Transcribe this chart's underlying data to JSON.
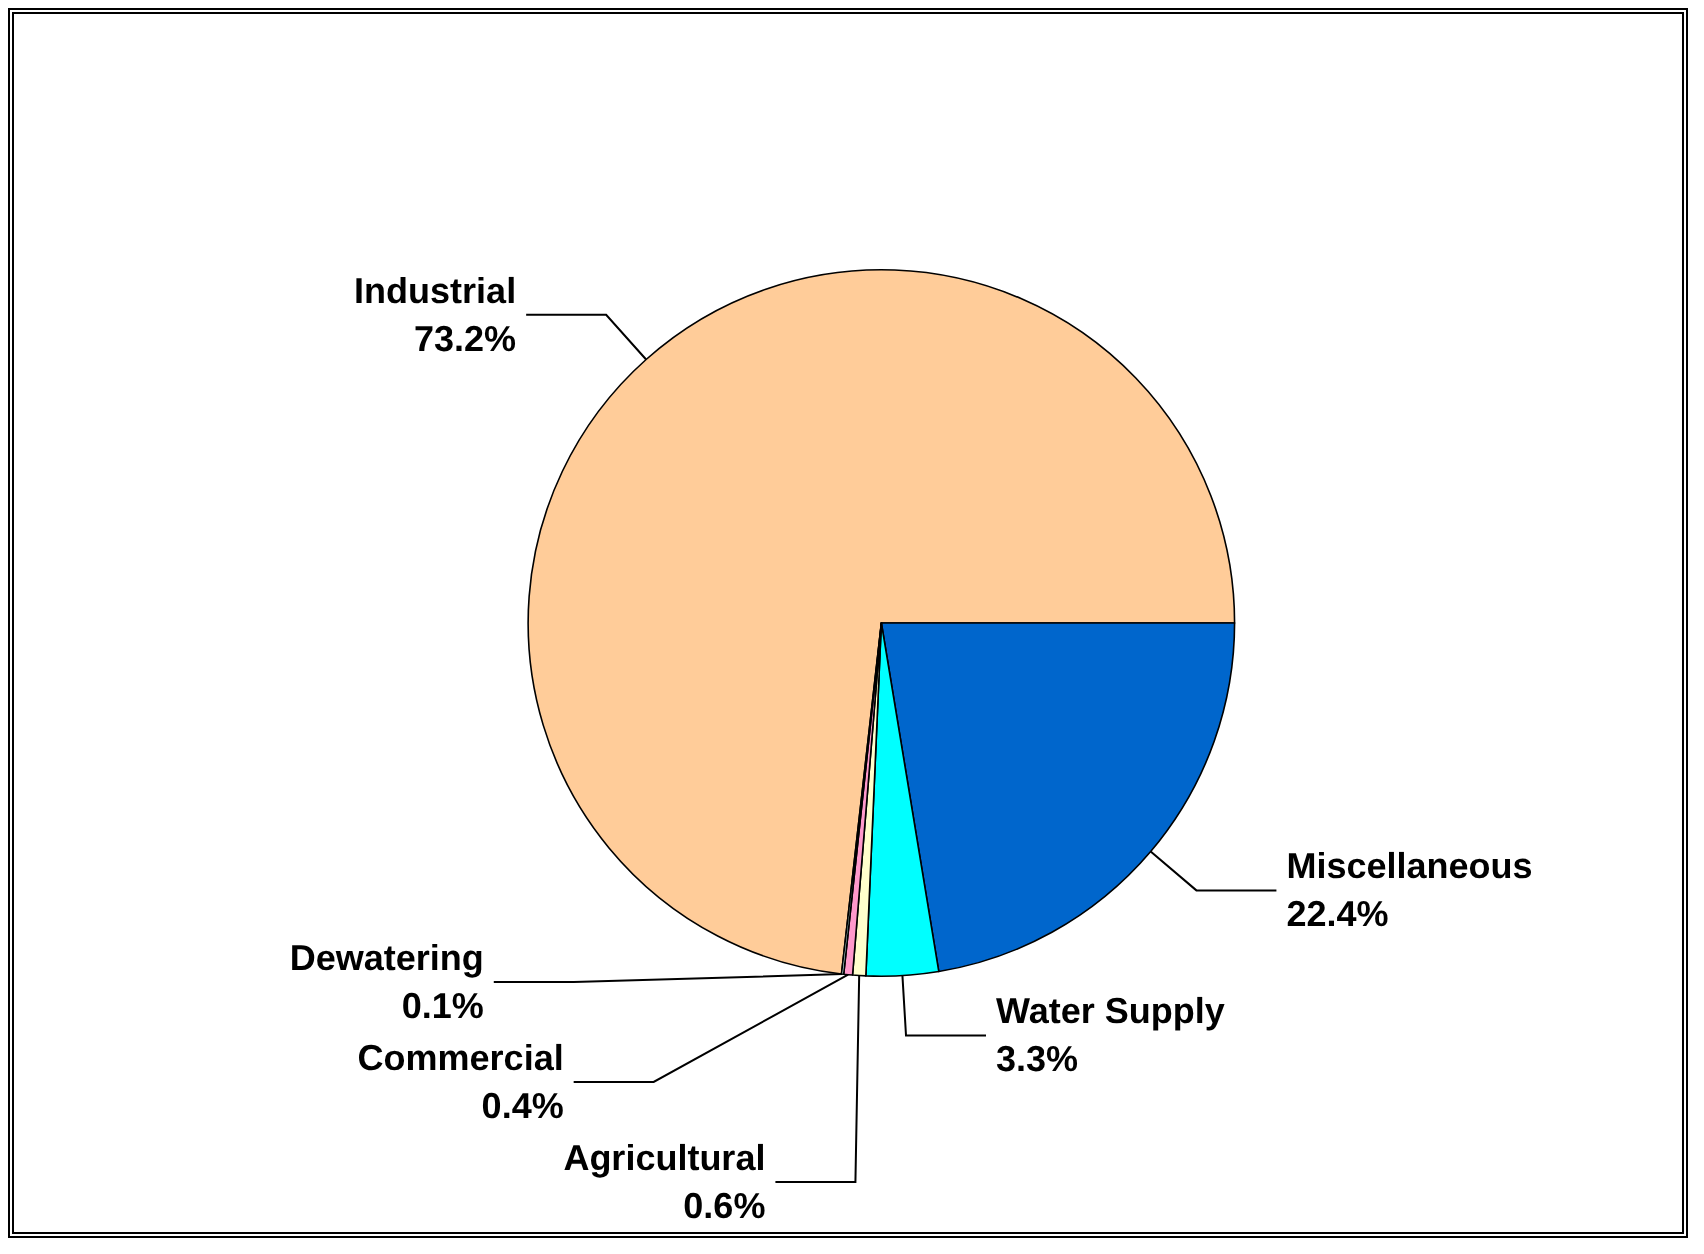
{
  "chart_data": {
    "type": "pie",
    "categories": [
      "Industrial",
      "Miscellaneous",
      "Water Supply",
      "Agricultural",
      "Commercial",
      "Dewatering"
    ],
    "values": [
      73.2,
      22.4,
      3.3,
      0.6,
      0.4,
      0.1
    ],
    "value_labels": [
      "73.2%",
      "22.4%",
      "3.3%",
      "0.6%",
      "0.4%",
      "0.1%"
    ],
    "colors": [
      "#ffcc99",
      "#0066cc",
      "#00ffff",
      "#ffffcc",
      "#ff99cc",
      "#ccffff"
    ],
    "legend": false
  }
}
